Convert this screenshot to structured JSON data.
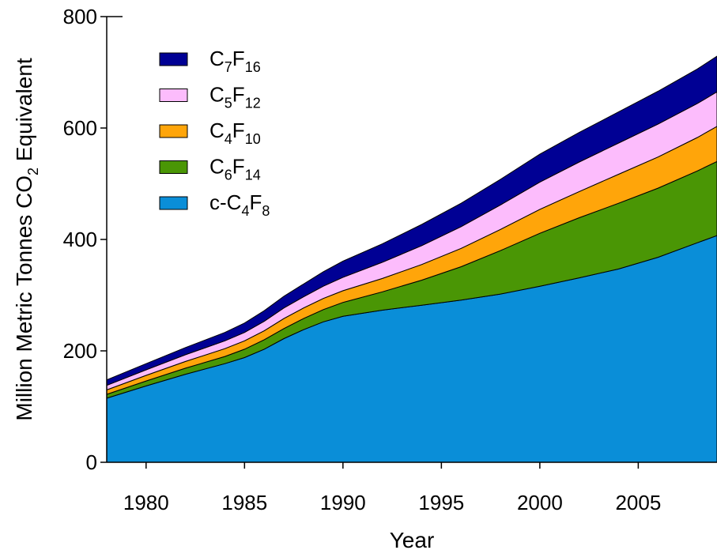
{
  "chart_data": {
    "type": "area",
    "stacked": true,
    "xlabel": "Year",
    "ylabel": {
      "main": "Million Metric Tonnes CO",
      "sub": "2",
      "after": " Equivalent"
    },
    "xlim": [
      1978,
      2009
    ],
    "ylim": [
      0,
      800
    ],
    "xticks": [
      1980,
      1985,
      1990,
      1995,
      2000,
      2005
    ],
    "yticks": [
      0,
      200,
      400,
      600,
      800
    ],
    "grid": false,
    "legend_position": "top-left",
    "x": [
      1978,
      1980,
      1982,
      1984,
      1985,
      1986,
      1987,
      1988,
      1989,
      1990,
      1992,
      1994,
      1996,
      1998,
      2000,
      2002,
      2004,
      2006,
      2008,
      2009
    ],
    "series": [
      {
        "name": "c-C4F8",
        "legend": {
          "parts": [
            {
              "t": "c-C"
            },
            {
              "t": "4",
              "sub": true
            },
            {
              "t": "F"
            },
            {
              "t": "8",
              "sub": true
            }
          ]
        },
        "color": "#0a8ed8",
        "values": [
          115,
          137,
          158,
          177,
          188,
          203,
          222,
          238,
          252,
          262,
          273,
          282,
          291,
          302,
          316,
          331,
          347,
          368,
          394,
          407
        ]
      },
      {
        "name": "C6F14",
        "legend": {
          "parts": [
            {
              "t": "C"
            },
            {
              "t": "6",
              "sub": true
            },
            {
              "t": "F"
            },
            {
              "t": "14",
              "sub": true
            }
          ]
        },
        "color": "#4a9605",
        "values": [
          7,
          9,
          11,
          13,
          15,
          17,
          18,
          20,
          22,
          25,
          33,
          45,
          60,
          78,
          95,
          108,
          118,
          124,
          129,
          133
        ]
      },
      {
        "name": "C4F10",
        "legend": {
          "parts": [
            {
              "t": "C"
            },
            {
              "t": "4",
              "sub": true
            },
            {
              "t": "F"
            },
            {
              "t": "10",
              "sub": true
            }
          ]
        },
        "color": "#ffa50a",
        "values": [
          8,
          10,
          12,
          14,
          15,
          16,
          18,
          19,
          20,
          21,
          24,
          28,
          33,
          38,
          43,
          47,
          52,
          56,
          60,
          63
        ]
      },
      {
        "name": "C5F12",
        "legend": {
          "parts": [
            {
              "t": "C"
            },
            {
              "t": "5",
              "sub": true
            },
            {
              "t": "F"
            },
            {
              "t": "12",
              "sub": true
            }
          ]
        },
        "color": "#fcbcfc",
        "values": [
          8,
          10,
          12,
          14,
          15,
          17,
          19,
          20,
          22,
          24,
          29,
          34,
          39,
          44,
          49,
          53,
          56,
          59,
          61,
          62
        ]
      },
      {
        "name": "C7F16",
        "legend": {
          "parts": [
            {
              "t": "C"
            },
            {
              "t": "7",
              "sub": true
            },
            {
              "t": "F"
            },
            {
              "t": "16",
              "sub": true
            }
          ]
        },
        "color": "#000094",
        "values": [
          10,
          11,
          13,
          15,
          17,
          19,
          21,
          23,
          26,
          29,
          33,
          38,
          42,
          46,
          50,
          53,
          56,
          59,
          62,
          64
        ]
      }
    ]
  }
}
